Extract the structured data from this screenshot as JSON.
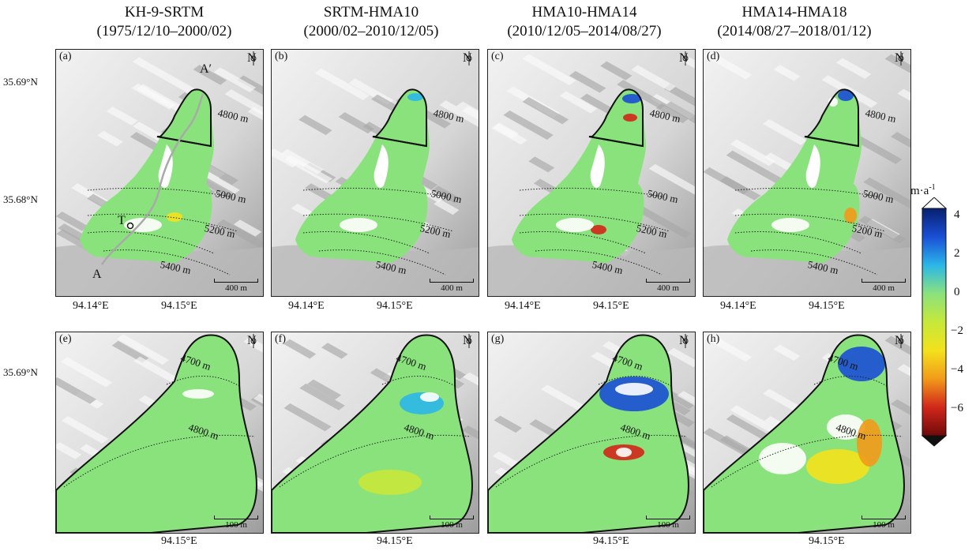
{
  "titles": [
    {
      "name": "KH-9-SRTM",
      "period": "(1975/12/10–2000/02)"
    },
    {
      "name": "SRTM-HMA10",
      "period": "(2000/02–2010/12/05)"
    },
    {
      "name": "HMA10-HMA14",
      "period": "(2010/12/05–2014/08/27)"
    },
    {
      "name": "HMA14-HMA18",
      "period": "(2014/08/27–2018/01/12)"
    }
  ],
  "top_panels": [
    {
      "label": "(a)",
      "variant": "a"
    },
    {
      "label": "(b)",
      "variant": "b"
    },
    {
      "label": "(c)",
      "variant": "c"
    },
    {
      "label": "(d)",
      "variant": "d"
    }
  ],
  "bottom_panels": [
    {
      "label": "(e)",
      "variant": "a"
    },
    {
      "label": "(f)",
      "variant": "b"
    },
    {
      "label": "(g)",
      "variant": "c"
    },
    {
      "label": "(h)",
      "variant": "d"
    }
  ],
  "north_label": "N",
  "top_scale": "400 m",
  "bottom_scale": "100 m",
  "top_contours": [
    "4800 m",
    "5000 m",
    "5200 m",
    "5400 m"
  ],
  "bottom_contours": [
    "4700 m",
    "4800 m"
  ],
  "lat_top": [
    "35.69°N",
    "35.68°N"
  ],
  "lat_bottom": [
    "35.69°N"
  ],
  "lon_top": [
    "94.14°E",
    "94.15°E"
  ],
  "lon_bottom": [
    "94.15°E"
  ],
  "profile": {
    "start": "A",
    "end": "A′",
    "point": "T"
  },
  "colorbar": {
    "unit": "m·a",
    "unit_exp": "-1",
    "ticks": [
      "4",
      "2",
      "0",
      "−2",
      "−4",
      "−6"
    ],
    "stops": [
      "#08206e",
      "#1a4fd6",
      "#2bb7e8",
      "#8ae27d",
      "#c6e83a",
      "#f3e21c",
      "#f29a1a",
      "#d1271a",
      "#6e0a0a"
    ]
  }
}
